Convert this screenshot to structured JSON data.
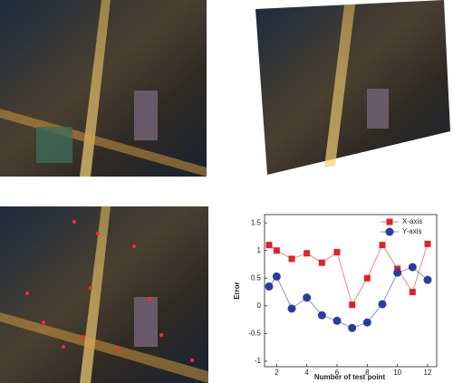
{
  "chart_data": {
    "type": "line",
    "x": [
      1.5,
      2,
      3,
      4,
      5,
      6,
      7,
      8,
      9,
      10,
      11,
      12
    ],
    "series": [
      {
        "name": "X-axis",
        "color": "#e3202a",
        "marker": "square",
        "values": [
          1.1,
          1.0,
          0.85,
          0.95,
          0.78,
          0.97,
          0.02,
          0.5,
          1.1,
          0.67,
          0.25,
          1.12
        ]
      },
      {
        "name": "Y-axis",
        "color": "#2b3c9e",
        "marker": "circle",
        "values": [
          0.35,
          0.53,
          -0.05,
          0.15,
          -0.17,
          -0.27,
          -0.4,
          -0.3,
          0.03,
          0.6,
          0.7,
          0.47
        ]
      }
    ],
    "xlabel": "Number of test point",
    "ylabel": "Error",
    "xlim": [
      1.2,
      12.6
    ],
    "ylim": [
      -1.1,
      1.65
    ],
    "xticks": [
      2,
      4,
      6,
      8,
      10,
      12
    ],
    "yticks": [
      -1,
      -0.5,
      0,
      0.5,
      1,
      1.5
    ],
    "grid": false,
    "legend": "upper right"
  }
}
